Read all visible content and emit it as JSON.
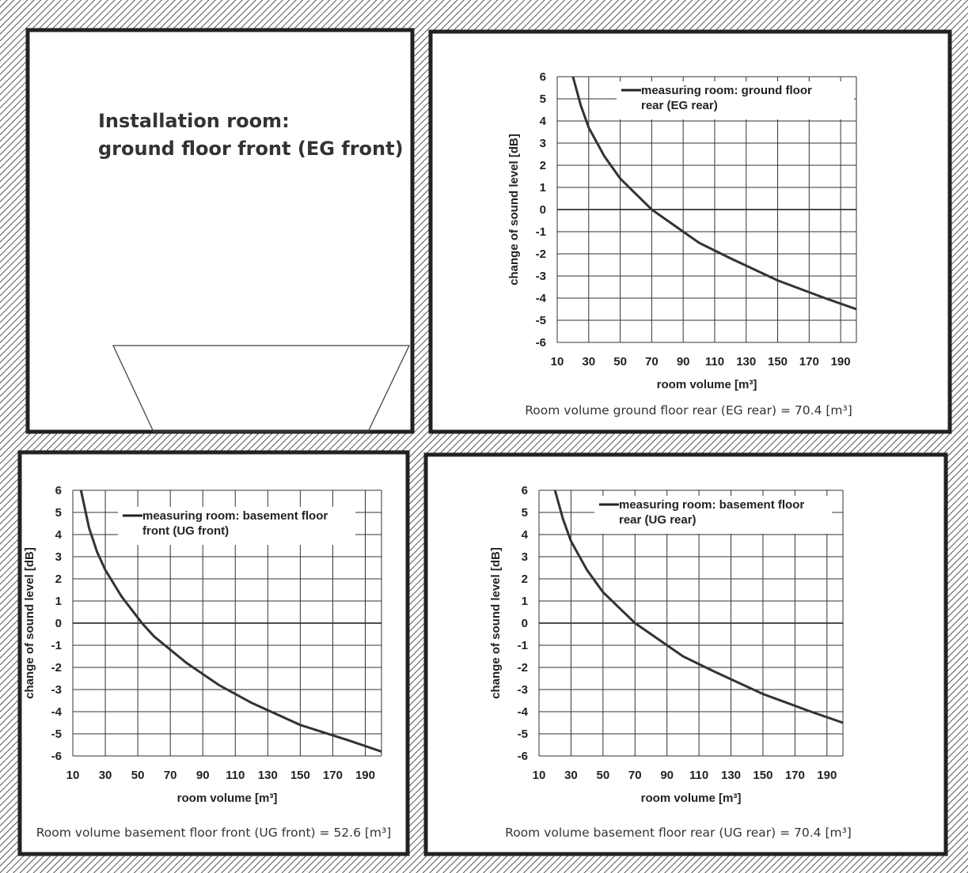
{
  "installation_room": {
    "title_line1": "Installation room:",
    "title_line2": "ground floor front (EG front)"
  },
  "colors": {
    "wall_hatch": "#555555",
    "curve": "#333333",
    "grid": "#333333"
  },
  "chart_data": [
    {
      "id": "eg-rear",
      "type": "line",
      "legend": [
        "measuring room: ground floor",
        "rear (EG rear)"
      ],
      "xlabel": "room volume [m³]",
      "ylabel": "change of sound level [dB]",
      "xlim": [
        10,
        200
      ],
      "ylim": [
        -6,
        6
      ],
      "x_ticks": [
        "10",
        "30",
        "50",
        "70",
        "90",
        "110",
        "130",
        "150",
        "170",
        "190"
      ],
      "y_ticks": [
        "6",
        "5",
        "4",
        "3",
        "2",
        "1",
        "0",
        "-1",
        "-2",
        "-3",
        "-4",
        "-5",
        "-6"
      ],
      "grid": true,
      "legend_position": "top-right",
      "reference_volume": 70.4,
      "series": [
        {
          "name": "measuring room: ground floor rear (EG rear)",
          "x": [
            20,
            25,
            30,
            40,
            50,
            60,
            70,
            80,
            100,
            120,
            150,
            180,
            200
          ],
          "y": [
            6.0,
            4.7,
            3.7,
            2.4,
            1.4,
            0.7,
            0.0,
            -0.5,
            -1.5,
            -2.2,
            -3.2,
            -4.0,
            -4.5
          ]
        }
      ],
      "caption": "Room volume ground floor rear (EG rear) = 70.4 [m³]"
    },
    {
      "id": "ug-front",
      "type": "line",
      "legend": [
        "measuring room: basement floor",
        "front (UG front)"
      ],
      "xlabel": "room volume [m³]",
      "ylabel": "change of sound level [dB]",
      "xlim": [
        10,
        200
      ],
      "ylim": [
        -6,
        6
      ],
      "x_ticks": [
        "10",
        "30",
        "50",
        "70",
        "90",
        "110",
        "130",
        "150",
        "170",
        "190"
      ],
      "y_ticks": [
        "6",
        "5",
        "4",
        "3",
        "2",
        "1",
        "0",
        "-1",
        "-2",
        "-3",
        "-4",
        "-5",
        "-6"
      ],
      "grid": true,
      "legend_position": "top-right",
      "reference_volume": 52.6,
      "series": [
        {
          "name": "measuring room: basement floor front (UG front)",
          "x": [
            15,
            20,
            25,
            30,
            40,
            52.6,
            60,
            80,
            100,
            120,
            150,
            180,
            200
          ],
          "y": [
            6.0,
            4.3,
            3.2,
            2.4,
            1.2,
            0.0,
            -0.6,
            -1.8,
            -2.8,
            -3.6,
            -4.6,
            -5.3,
            -5.8
          ]
        }
      ],
      "caption": "Room volume basement floor front (UG front) = 52.6 [m³]"
    },
    {
      "id": "ug-rear",
      "type": "line",
      "legend": [
        "measuring room: basement floor",
        "rear (UG rear)"
      ],
      "xlabel": "room volume [m³]",
      "ylabel": "change of sound level [dB]",
      "xlim": [
        10,
        200
      ],
      "ylim": [
        -6,
        6
      ],
      "x_ticks": [
        "10",
        "30",
        "50",
        "70",
        "90",
        "110",
        "130",
        "150",
        "170",
        "190"
      ],
      "y_ticks": [
        "6",
        "5",
        "4",
        "3",
        "2",
        "1",
        "0",
        "-1",
        "-2",
        "-3",
        "-4",
        "-5",
        "-6"
      ],
      "grid": true,
      "legend_position": "top-right",
      "reference_volume": 70.4,
      "series": [
        {
          "name": "measuring room: basement floor rear (UG rear)",
          "x": [
            20,
            25,
            30,
            40,
            50,
            60,
            70,
            80,
            100,
            120,
            150,
            180,
            200
          ],
          "y": [
            6.0,
            4.7,
            3.7,
            2.4,
            1.4,
            0.7,
            0.0,
            -0.5,
            -1.5,
            -2.2,
            -3.2,
            -4.0,
            -4.5
          ]
        }
      ],
      "caption": "Room volume basement floor rear (UG rear) = 70.4 [m³]"
    }
  ]
}
